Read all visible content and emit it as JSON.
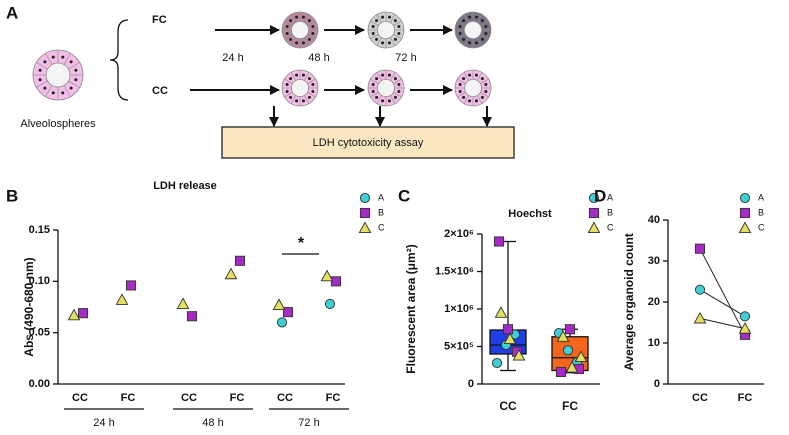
{
  "diagram": {
    "panel_label": "A",
    "start_label": "Alveolospheres",
    "branches": [
      "FC",
      "CC"
    ],
    "times": [
      "24 h",
      "48 h",
      "72 h"
    ],
    "assay": "LDH cytotoxicity assay"
  },
  "chart_data": [
    {
      "type": "strip",
      "panel_label": "B",
      "title": "LDH release",
      "y_label": "Abs (490-680 nm)",
      "categories": [
        "CC",
        "FC",
        "CC",
        "FC",
        "CC",
        "FC"
      ],
      "groups": [
        "24 h",
        "48 h",
        "72 h"
      ],
      "series": [
        {
          "name": "A",
          "color": "#3ccfd6",
          "marker": "circle",
          "values": [
            null,
            null,
            null,
            null,
            0.06,
            0.078
          ]
        },
        {
          "name": "B",
          "color": "#a62bc4",
          "marker": "square",
          "values": [
            0.069,
            0.096,
            0.066,
            0.12,
            0.07,
            0.1
          ]
        },
        {
          "name": "C",
          "color": "#e3e05e",
          "marker": "triangle",
          "values": [
            0.067,
            0.082,
            0.078,
            0.107,
            0.077,
            0.105
          ]
        }
      ],
      "ylim": [
        0,
        0.15
      ],
      "yticks": [
        {
          "value": 0,
          "label": "0.00"
        },
        0.05,
        {
          "value": 0.1,
          "label": "0.10"
        },
        0.15
      ],
      "annotations": [
        "*"
      ]
    },
    {
      "type": "box",
      "panel_label": "C",
      "title": "Hoechst",
      "y_label": "Fluorescent area (μm²)",
      "categories": [
        "CC",
        "FC"
      ],
      "colors": [
        "#1f3ee6",
        "#f4661c"
      ],
      "boxes": [
        {
          "min": 180000,
          "q1": 400000,
          "median": 520000,
          "q3": 720000,
          "max": 1900000
        },
        {
          "min": 150000,
          "q1": 180000,
          "median": 350000,
          "q3": 630000,
          "max": 730000
        }
      ],
      "series": [
        {
          "name": "A",
          "color": "#3ccfd6",
          "marker": "circle",
          "values": [
            [
              280000,
              520000,
              660000
            ],
            [
              680000,
              450000,
              290000
            ]
          ]
        },
        {
          "name": "B",
          "color": "#a62bc4",
          "marker": "square",
          "values": [
            [
              1900000,
              730000,
              430000
            ],
            [
              160000,
              730000,
              200000
            ]
          ]
        },
        {
          "name": "C",
          "color": "#e3e05e",
          "marker": "triangle",
          "values": [
            [
              950000,
              600000,
              380000
            ],
            [
              630000,
              220000,
              360000
            ]
          ]
        }
      ],
      "ylim": [
        0,
        2000000
      ],
      "yticks": [
        0,
        {
          "value": 500000,
          "label": "5×10⁵"
        },
        {
          "value": 1000000,
          "label": "1×10⁶"
        },
        {
          "value": 1500000,
          "label": "1.5×10⁶"
        },
        {
          "value": 2000000,
          "label": "2×10⁶"
        }
      ]
    },
    {
      "type": "line",
      "panel_label": "D",
      "y_label": "Average organoid count",
      "categories": [
        "CC",
        "FC"
      ],
      "series": [
        {
          "name": "A",
          "color": "#3ccfd6",
          "marker": "circle",
          "values": [
            23,
            16.5
          ]
        },
        {
          "name": "B",
          "color": "#a62bc4",
          "marker": "square",
          "values": [
            33,
            12
          ]
        },
        {
          "name": "C",
          "color": "#e3e05e",
          "marker": "triangle",
          "values": [
            16,
            13.5
          ]
        }
      ],
      "ylim": [
        0,
        40
      ],
      "yticks": [
        0,
        10,
        20,
        30,
        40
      ]
    }
  ]
}
